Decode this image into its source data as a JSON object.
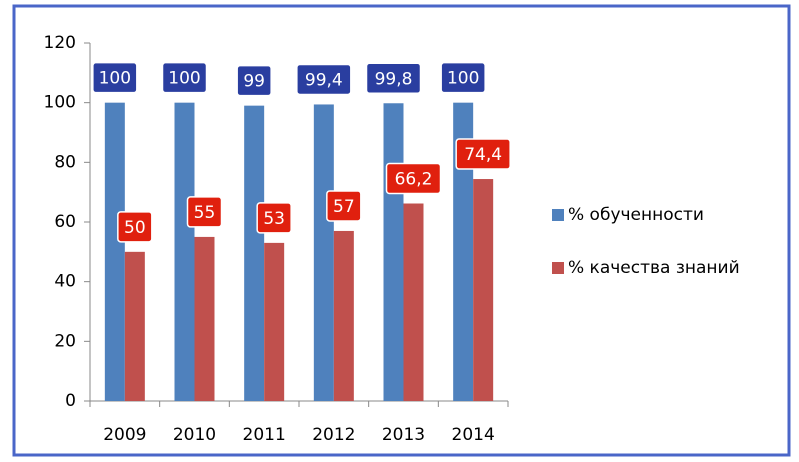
{
  "chart_data": {
    "type": "bar",
    "categories": [
      "2009",
      "2010",
      "2011",
      "2012",
      "2013",
      "2014"
    ],
    "series": [
      {
        "name": "% обученности",
        "color": "#4f81bd",
        "label_color": "#2a3ea0",
        "values": [
          100,
          100,
          99,
          99.4,
          99.8,
          100
        ],
        "value_labels": [
          "100",
          "100",
          "99",
          "99,4",
          "99,8",
          "100"
        ]
      },
      {
        "name": "% качества знаний",
        "color": "#c0504d",
        "label_color": "#e0200e",
        "values": [
          50,
          55,
          53,
          57,
          66.2,
          74.4
        ],
        "value_labels": [
          "50",
          "55",
          "53",
          "57",
          "66,2",
          "74,4"
        ]
      }
    ],
    "ylim": [
      0,
      120
    ],
    "yticks": [
      0,
      20,
      40,
      60,
      80,
      100,
      120
    ],
    "grid": false,
    "legend": "right"
  }
}
